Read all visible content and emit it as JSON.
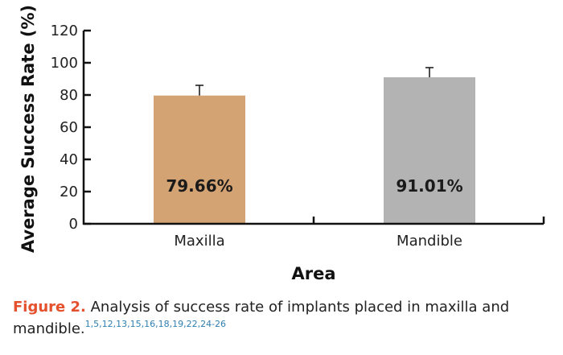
{
  "chart_data": {
    "type": "bar",
    "categories": [
      "Maxilla",
      "Mandible"
    ],
    "values": [
      79.66,
      91.01
    ],
    "error_upper": [
      86,
      97
    ],
    "data_labels": [
      "79.66%",
      "91.01%"
    ],
    "colors": [
      "#d4a373",
      "#b3b3b3"
    ],
    "xlabel": "Area",
    "ylabel": "Average Success Rate (%)",
    "ylim": [
      0,
      120
    ],
    "yticks": [
      0,
      20,
      40,
      60,
      80,
      100,
      120
    ],
    "grid": false
  },
  "caption": {
    "label": "Figure 2.",
    "text": " Analysis of success rate of implants placed in maxilla and mandible.",
    "refs": "1,5,12,13,15,16,18,19,22,24-26"
  }
}
